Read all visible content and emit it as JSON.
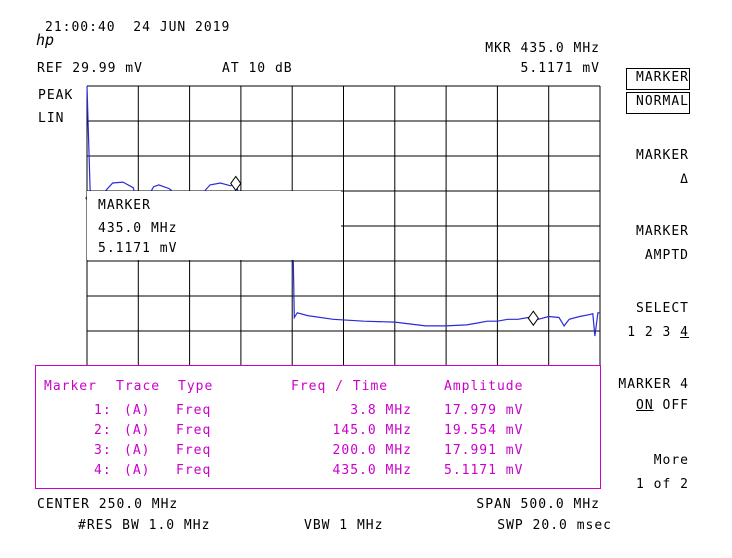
{
  "header": {
    "logo": "hp",
    "timestamp": "21:00:40  24 JUN 2019",
    "ref_level": "REF 29.99 mV",
    "attenuation": "AT 10 dB",
    "detector": "PEAK",
    "scale": "LIN",
    "mkr_label": "MKR 435.0 MHz",
    "mkr_value": "5.1171 mV"
  },
  "marker_readout": {
    "title": "MARKER",
    "freq": "435.0 MHz",
    "amplitude": "5.1171 mV"
  },
  "marker_table": {
    "headers": [
      "Marker",
      "Trace",
      "Type",
      "Freq / Time",
      "Amplitude"
    ],
    "rows": [
      {
        "marker": "1:",
        "trace": "(A)",
        "type": "Freq",
        "freq": "3.8 MHz",
        "amp": "17.979 mV"
      },
      {
        "marker": "2:",
        "trace": "(A)",
        "type": "Freq",
        "freq": "145.0 MHz",
        "amp": "19.554 mV"
      },
      {
        "marker": "3:",
        "trace": "(A)",
        "type": "Freq",
        "freq": "200.0 MHz",
        "amp": "17.991 mV"
      },
      {
        "marker": "4:",
        "trace": "(A)",
        "type": "Freq",
        "freq": "435.0 MHz",
        "amp": "5.1171 mV"
      }
    ]
  },
  "footer": {
    "center": "CENTER 250.0 MHz",
    "span": "SPAN 500.0 MHz",
    "res_bw": "#RES BW 1.0 MHz",
    "vbw": "VBW 1 MHz",
    "sweep": "SWP 20.0 msec"
  },
  "softkeys": {
    "marker_normal_1": "MARKER",
    "marker_normal_2": "NORMAL",
    "marker_delta_1": "MARKER",
    "marker_delta_2": "Δ",
    "marker_amptd_1": "MARKER",
    "marker_amptd_2": "AMPTD",
    "select_1": "SELECT",
    "select_2_prefix": "1 2 3 ",
    "select_2_active": "4",
    "marker4_1": "MARKER 4",
    "marker4_on": "ON",
    "marker4_off": " OFF",
    "more_1": "More",
    "more_2": "1 of 2"
  },
  "colors": {
    "trace": "#2a2ad8",
    "table": "#cc00cc",
    "grid": "#000000"
  },
  "chart_data": {
    "type": "line",
    "xlim": [
      0,
      500
    ],
    "ylim": [
      0,
      29.99
    ],
    "x_unit": "MHz",
    "y_unit": "mV",
    "series": [
      {
        "x": [
          0,
          3,
          5,
          8,
          15,
          25,
          35,
          45,
          50,
          55,
          60,
          65,
          70,
          80,
          90,
          100,
          110,
          120,
          130,
          140,
          145,
          150,
          160,
          170,
          180,
          190,
          195,
          200,
          202,
          205,
          215,
          240,
          270,
          300,
          330,
          350,
          370,
          380,
          390,
          400,
          410,
          420,
          430,
          435,
          440,
          450,
          460,
          465,
          470,
          480,
          490,
          493,
          495,
          498,
          500
        ],
        "y": [
          29.99,
          18.9,
          17.6,
          17.9,
          18.4,
          19.6,
          19.7,
          19.1,
          17.3,
          17.2,
          18.3,
          19.2,
          19.4,
          19.0,
          18.2,
          17.9,
          18.2,
          19.4,
          19.6,
          19.3,
          19.55,
          17.6,
          17.3,
          17.4,
          17.2,
          17.2,
          17.3,
          17.99,
          5.2,
          5.7,
          5.4,
          5.0,
          4.8,
          4.7,
          4.3,
          4.3,
          4.4,
          4.6,
          4.8,
          4.8,
          5.0,
          5.0,
          5.2,
          5.12,
          5.0,
          5.3,
          5.2,
          4.3,
          5.0,
          5.3,
          5.5,
          5.6,
          3.2,
          5.7,
          5.7
        ]
      }
    ],
    "markers": [
      {
        "label": "1",
        "x": 3.8,
        "y": 17.979
      },
      {
        "label": "2",
        "x": 145.0,
        "y": 19.554
      },
      {
        "label": "3",
        "x": 200.0,
        "y": 17.991
      },
      {
        "label": "4",
        "x": 435.0,
        "y": 5.1171
      }
    ]
  }
}
